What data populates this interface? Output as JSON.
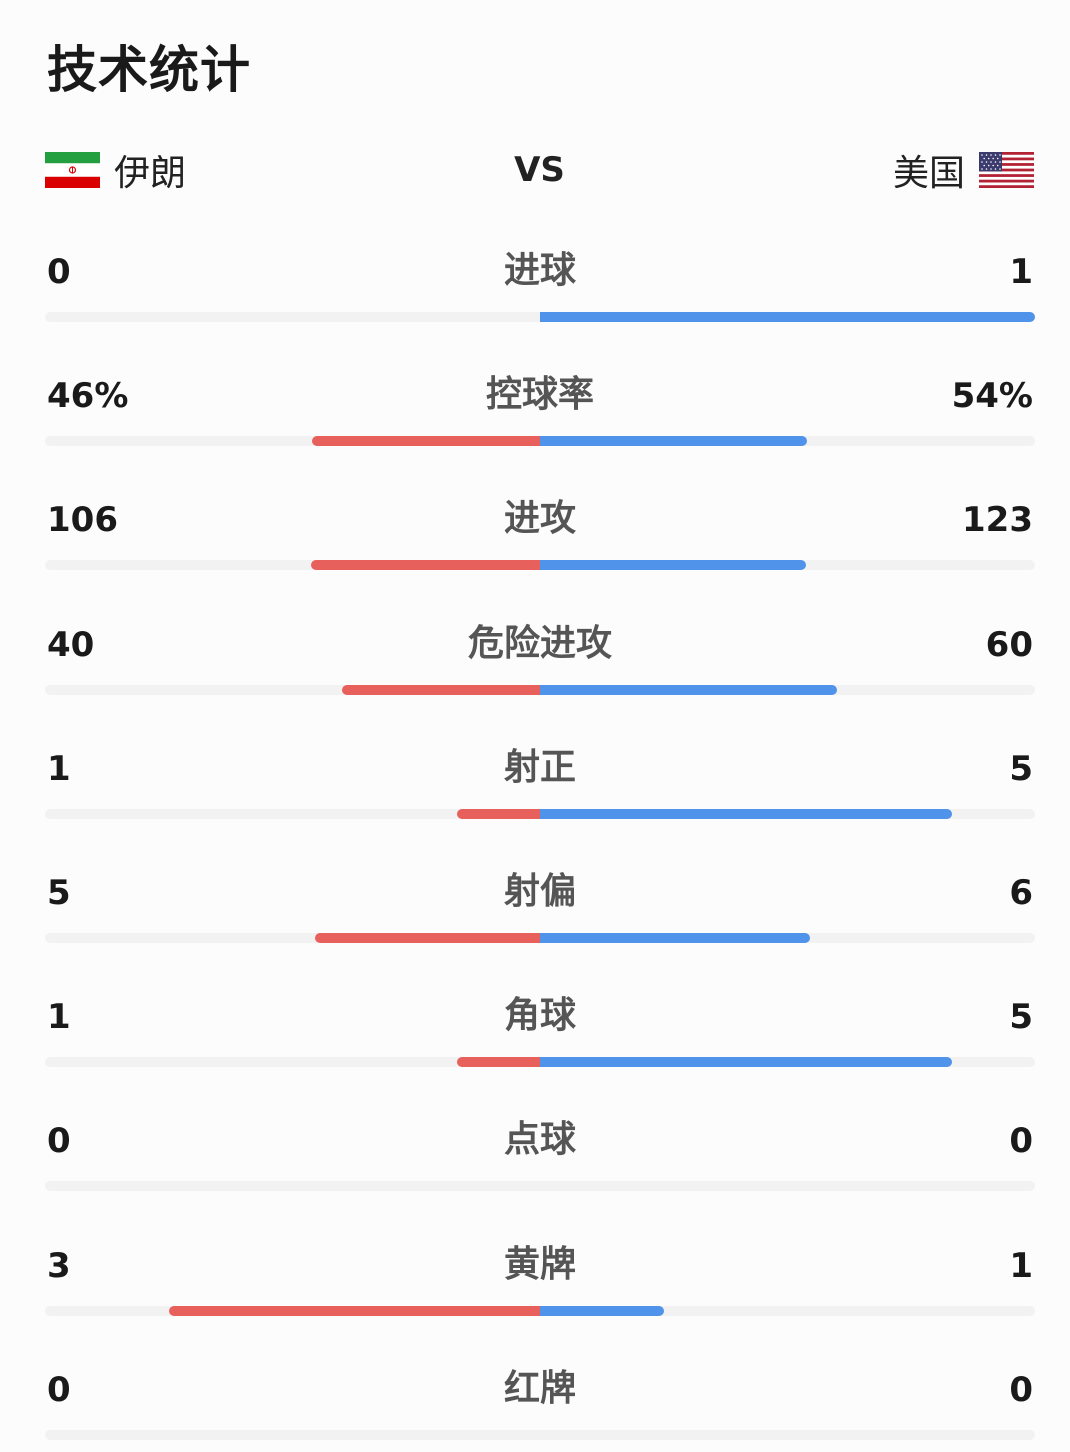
{
  "title": "技术统计",
  "teams": {
    "home": {
      "name": "伊朗",
      "flag_icon": "iran-flag-icon"
    },
    "vs": "VS",
    "away": {
      "name": "美国",
      "flag_icon": "usa-flag-icon"
    }
  },
  "colors": {
    "home_bar": "#e8605c",
    "away_bar": "#4f93ea"
  },
  "stats": [
    {
      "label": "进球",
      "home": "0",
      "away": "1",
      "home_share": 0.0,
      "away_share": 1.0
    },
    {
      "label": "控球率",
      "home": "46%",
      "away": "54%",
      "home_share": 0.46,
      "away_share": 0.54
    },
    {
      "label": "进攻",
      "home": "106",
      "away": "123",
      "home_share": 0.463,
      "away_share": 0.537
    },
    {
      "label": "危险进攻",
      "home": "40",
      "away": "60",
      "home_share": 0.4,
      "away_share": 0.6
    },
    {
      "label": "射正",
      "home": "1",
      "away": "5",
      "home_share": 0.167,
      "away_share": 0.833
    },
    {
      "label": "射偏",
      "home": "5",
      "away": "6",
      "home_share": 0.455,
      "away_share": 0.545
    },
    {
      "label": "角球",
      "home": "1",
      "away": "5",
      "home_share": 0.167,
      "away_share": 0.833
    },
    {
      "label": "点球",
      "home": "0",
      "away": "0",
      "home_share": 0.0,
      "away_share": 0.0
    },
    {
      "label": "黄牌",
      "home": "3",
      "away": "1",
      "home_share": 0.75,
      "away_share": 0.25
    },
    {
      "label": "红牌",
      "home": "0",
      "away": "0",
      "home_share": 0.0,
      "away_share": 0.0
    }
  ]
}
